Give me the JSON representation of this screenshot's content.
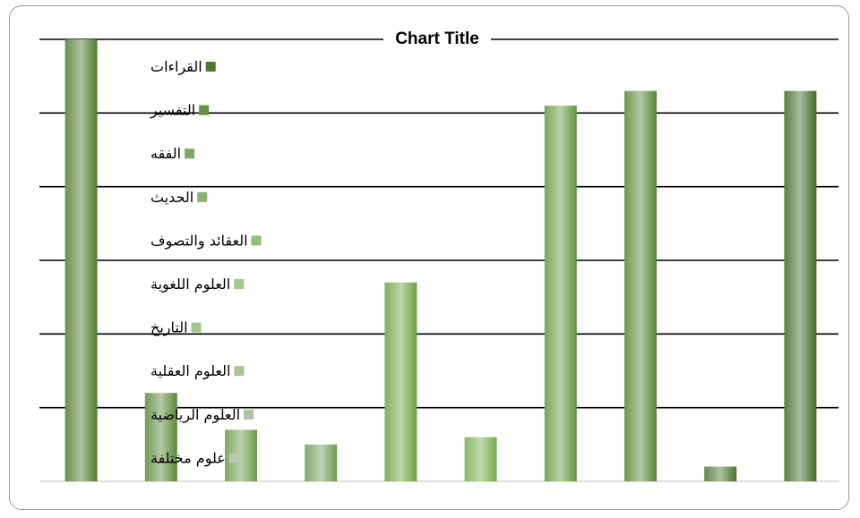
{
  "chart_data": {
    "type": "bar",
    "title": "Chart Title",
    "ylim": [
      0,
      6
    ],
    "grid": true,
    "legend_position": "left",
    "series": [
      {
        "name": "القراءات",
        "value": 6.0,
        "color": "#4e7a2e"
      },
      {
        "name": "التفسير",
        "value": 1.2,
        "color": "#5a8838"
      },
      {
        "name": "الفقه",
        "value": 0.7,
        "color": "#6a9a48"
      },
      {
        "name": "الحديث",
        "value": 0.5,
        "color": "#6e9a52"
      },
      {
        "name": "العقائد والتصوف",
        "value": 2.7,
        "color": "#6aa244"
      },
      {
        "name": "العلوم اللغوية",
        "value": 0.6,
        "color": "#72ab4c"
      },
      {
        "name": "التاريخ",
        "value": 5.1,
        "color": "#5f973d"
      },
      {
        "name": "العلوم العقلية",
        "value": 5.3,
        "color": "#548634"
      },
      {
        "name": "العلوم الرياضية",
        "value": 0.2,
        "color": "#47742a"
      },
      {
        "name": "علوم مختلفة",
        "value": 5.3,
        "color": "#3f6a24"
      }
    ]
  }
}
